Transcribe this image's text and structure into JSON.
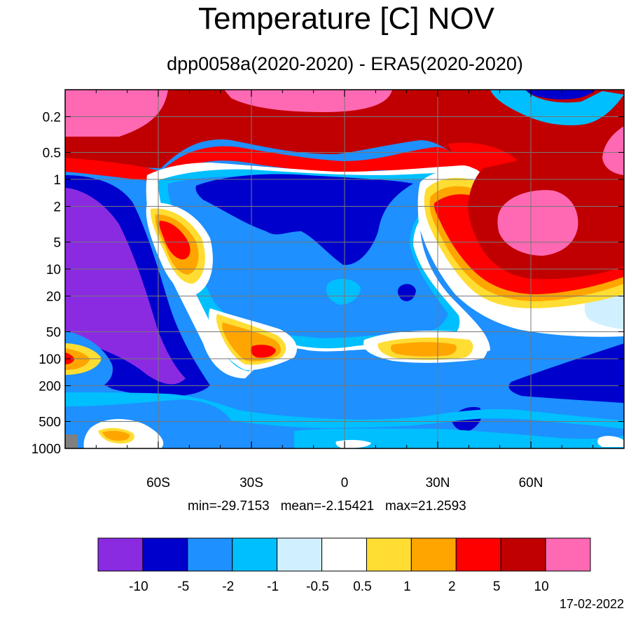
{
  "title": "Temperature [C] NOV",
  "subtitle": "dpp0058a(2020-2020) - ERA5(2020-2020)",
  "stats": {
    "min": "min=-29.7153",
    "mean": "mean=-2.15421",
    "max": "max=21.2593"
  },
  "date": "17-02-2022",
  "chart_data": {
    "type": "heatmap",
    "title": "Temperature [C] NOV",
    "subtitle": "dpp0058a(2020-2020) - ERA5(2020-2020)",
    "xlabel": "",
    "ylabel": "",
    "x_ticks": [
      "60S",
      "30S",
      "0",
      "30N",
      "60N"
    ],
    "x_tick_values": [
      -60,
      -30,
      0,
      30,
      60
    ],
    "xlim": [
      -90,
      90
    ],
    "y_ticks": [
      "0.2",
      "0.5",
      "1",
      "2",
      "5",
      "10",
      "20",
      "50",
      "100",
      "200",
      "500",
      "1000"
    ],
    "y_tick_values": [
      0.2,
      0.5,
      1,
      2,
      5,
      10,
      20,
      50,
      100,
      200,
      500,
      1000
    ],
    "ylim": [
      1000,
      0.1
    ],
    "y_scale": "log",
    "grid": true,
    "colorbar": {
      "levels": [
        "-10",
        "-5",
        "-2",
        "-1",
        "-0.5",
        "0.5",
        "1",
        "2",
        "5",
        "10"
      ],
      "colors": [
        "#8a2be2",
        "#0000cd",
        "#1e90ff",
        "#00bfff",
        "#d0f0ff",
        "#ffffff",
        "#ffdd33",
        "#ffa500",
        "#ff0000",
        "#c00000",
        "#ff69b4"
      ]
    }
  }
}
